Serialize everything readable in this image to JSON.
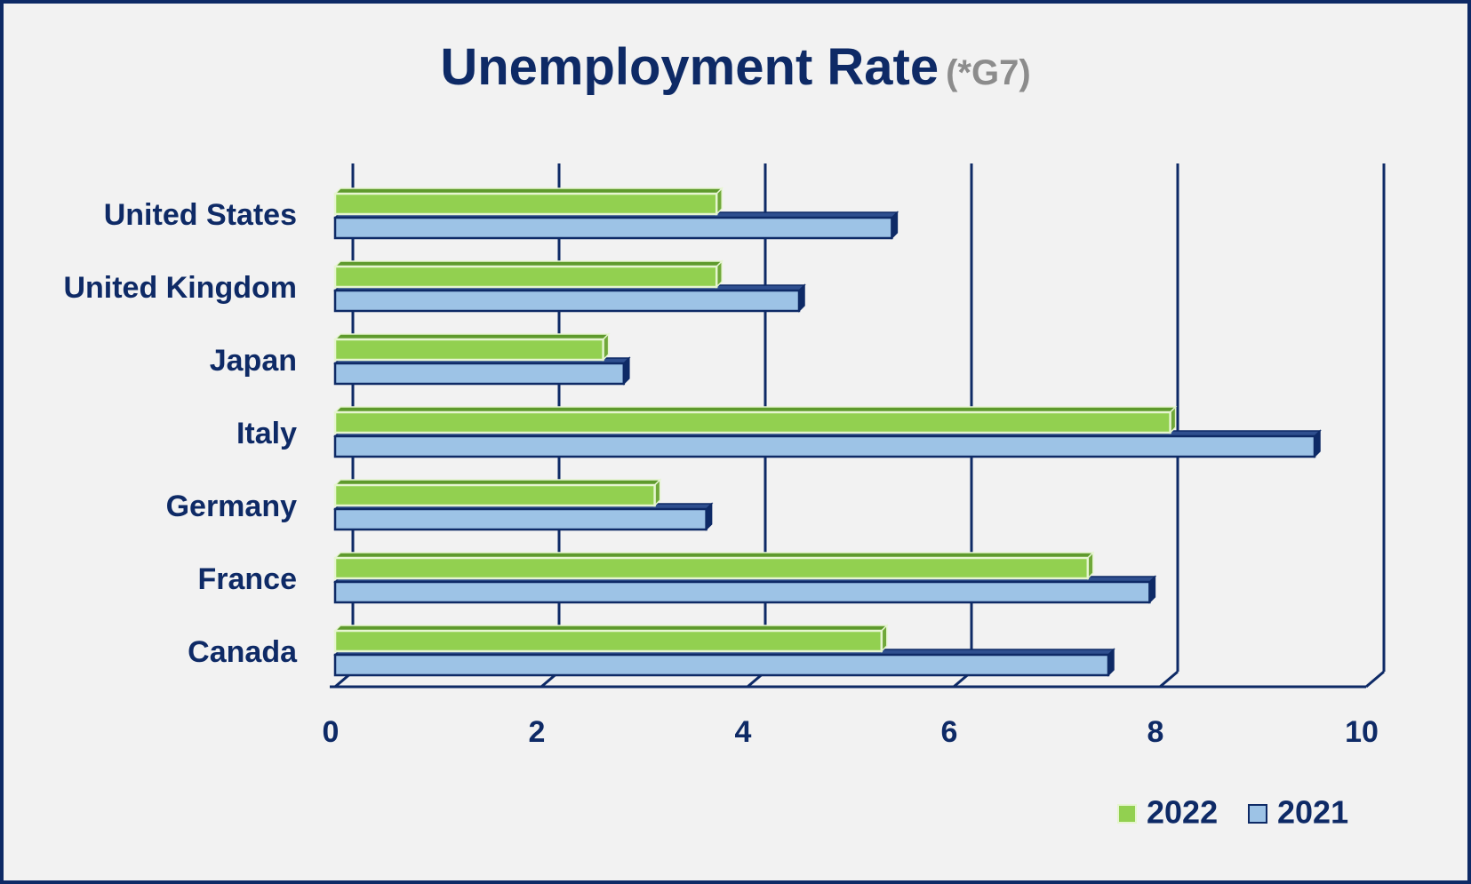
{
  "title": "Unemployment Rate",
  "subtitle": "(*G7)",
  "colors": {
    "text": "#0e2a66",
    "subtitle": "#8c8c8c",
    "background": "#f2f2f2",
    "series_2022_fill": "#92d050",
    "series_2022_edge": "#70a83a",
    "series_2021_fill": "#9dc3e6",
    "series_2021_edge": "#0e2a66"
  },
  "chart_data": {
    "type": "bar",
    "orientation": "horizontal",
    "style": "3d",
    "categories": [
      "United States",
      "United Kingdom",
      "Japan",
      "Italy",
      "Germany",
      "France",
      "Canada"
    ],
    "series": [
      {
        "name": "2022",
        "values": [
          3.7,
          3.7,
          2.6,
          8.1,
          3.1,
          7.3,
          5.3
        ]
      },
      {
        "name": "2021",
        "values": [
          5.4,
          4.5,
          2.8,
          9.5,
          3.6,
          7.9,
          7.5
        ]
      }
    ],
    "xlim": [
      0,
      10
    ],
    "xticks": [
      "0",
      "2",
      "4",
      "6",
      "8",
      "10"
    ],
    "grid": "vertical",
    "legend": "bottom-right"
  }
}
